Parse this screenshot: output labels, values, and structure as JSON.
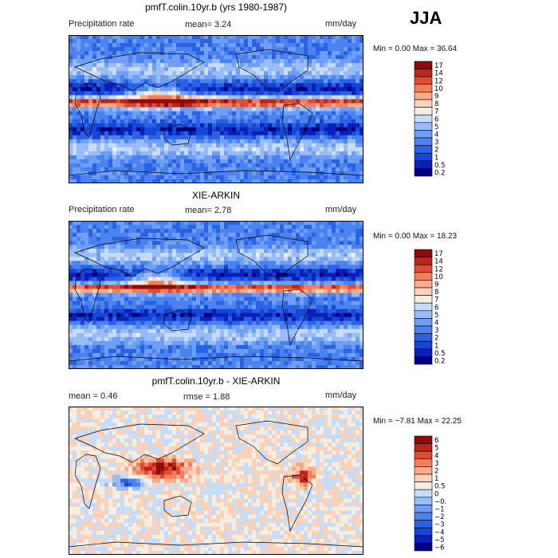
{
  "season": "JJA",
  "colors": {
    "seq": [
      "#00007f",
      "#0a1fb8",
      "#1646d4",
      "#2a62e6",
      "#4a82f0",
      "#6f9ef6",
      "#98bcf8",
      "#c6dcf8",
      "#f5eee0",
      "#fbd2b8",
      "#f7ab8a",
      "#ef7f5d",
      "#dc4d32",
      "#bf2417",
      "#8f0c0b"
    ],
    "div": [
      "#00007f",
      "#0a1fb8",
      "#1646d4",
      "#2a62e6",
      "#4a82f0",
      "#6f9ef6",
      "#98bcf8",
      "#c6dcf8",
      "#f5eee0",
      "#fbd2b8",
      "#f7ab8a",
      "#ef7f5d",
      "#dc4d32",
      "#bf2417",
      "#8f0c0b"
    ]
  },
  "chart_data": [
    {
      "type": "heatmap",
      "title": "pmfT.colin.10yr.b (yrs 1980-1987)",
      "field_label": "Precipitation rate",
      "stat_text": "mean=   3.24",
      "units": "mm/day",
      "min_max": "Min =    0.00 Max =   36.64",
      "colorbar_levels": [
        "17",
        "14",
        "12",
        "10",
        "9",
        "8",
        "7",
        "6",
        "5",
        "4",
        "3",
        "2",
        "1",
        "0.5",
        "0.2"
      ],
      "xlim": [
        0,
        360
      ],
      "ylim": [
        -90,
        90
      ],
      "mean": 3.24,
      "min": 0.0,
      "max": 36.64
    },
    {
      "type": "heatmap",
      "title": "XIE-ARKIN",
      "field_label": "Precipitation rate",
      "stat_text": "mean=   2.78",
      "units": "mm/day",
      "min_max": "Min =    0.00 Max =   18.23",
      "colorbar_levels": [
        "17",
        "14",
        "12",
        "10",
        "9",
        "8",
        "7",
        "6",
        "5",
        "4",
        "3",
        "2",
        "1",
        "0.5",
        "0.2"
      ],
      "xlim": [
        0,
        360
      ],
      "ylim": [
        -90,
        90
      ],
      "mean": 2.78,
      "min": 0.0,
      "max": 18.23
    },
    {
      "type": "heatmap",
      "title": "pmfT.colin.10yr.b - XIE-ARKIN",
      "stat_left": "mean =    0.46",
      "stat_text": "rmse =   1.88",
      "units": "mm/day",
      "min_max": "Min =  −7.81 Max =   22.25",
      "colorbar_levels": [
        "6",
        "5",
        "4",
        "3",
        "2",
        "1",
        "0.5",
        "0",
        "−0.5",
        "−1",
        "−2",
        "−3",
        "−4",
        "−5",
        "−6"
      ],
      "xlim": [
        0,
        360
      ],
      "ylim": [
        -90,
        90
      ],
      "mean": 0.46,
      "rmse": 1.88,
      "min": -7.81,
      "max": 22.25
    }
  ]
}
